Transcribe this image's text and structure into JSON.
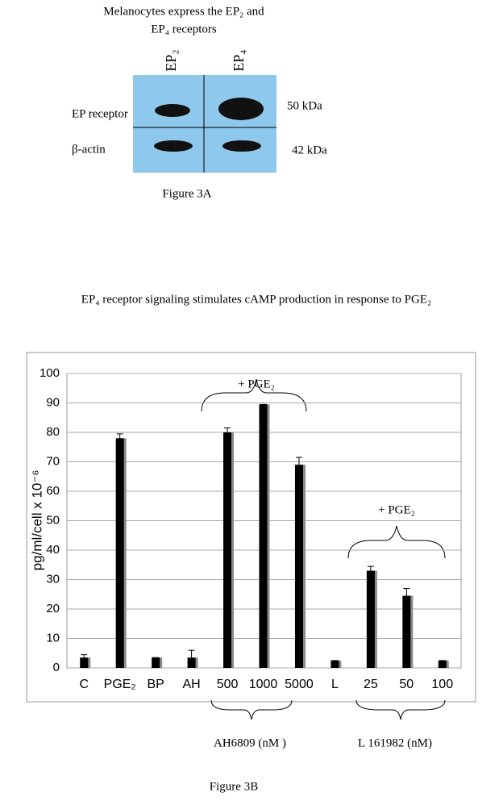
{
  "figure_a": {
    "title_lines": [
      "Melanocytes express the EP₂ and",
      "EP₄ receptors"
    ],
    "lanes": [
      "EP₂",
      "EP₄"
    ],
    "rows": [
      {
        "label": "EP receptor",
        "size": "50 kDa"
      },
      {
        "label": "β-actin",
        "size": "42 kDa"
      }
    ],
    "caption": "Figure 3A"
  },
  "chart_data": {
    "type": "bar",
    "subtitle": "EP₄ receptor signaling stimulates cAMP production in response to PGE₂",
    "ylabel": "pg/ml/cell x 10⁻⁶",
    "categories": [
      "C",
      "PGE₂",
      "BP",
      "AH",
      "500",
      "1000",
      "5000",
      "L",
      "25",
      "50",
      "100"
    ],
    "values": [
      3.5,
      78,
      3.5,
      3.5,
      80,
      89.5,
      69,
      2.5,
      33,
      24.5,
      2.5
    ],
    "errors": [
      1,
      1.5,
      0,
      2.5,
      1.5,
      0,
      2.5,
      0,
      1.5,
      2.5,
      0
    ],
    "color": "#000000",
    "shadow_color": "#8a8a8a",
    "ylim": [
      0,
      100
    ],
    "yticks": [
      0,
      10,
      20,
      30,
      40,
      50,
      60,
      70,
      80,
      90,
      100
    ],
    "grid": true,
    "annotations": [
      "+ PGE₂",
      "+ PGE₂"
    ],
    "group_labels": [
      "AH6809 (nM )",
      "L 161982 (nM)"
    ],
    "caption": "Figure 3B"
  }
}
